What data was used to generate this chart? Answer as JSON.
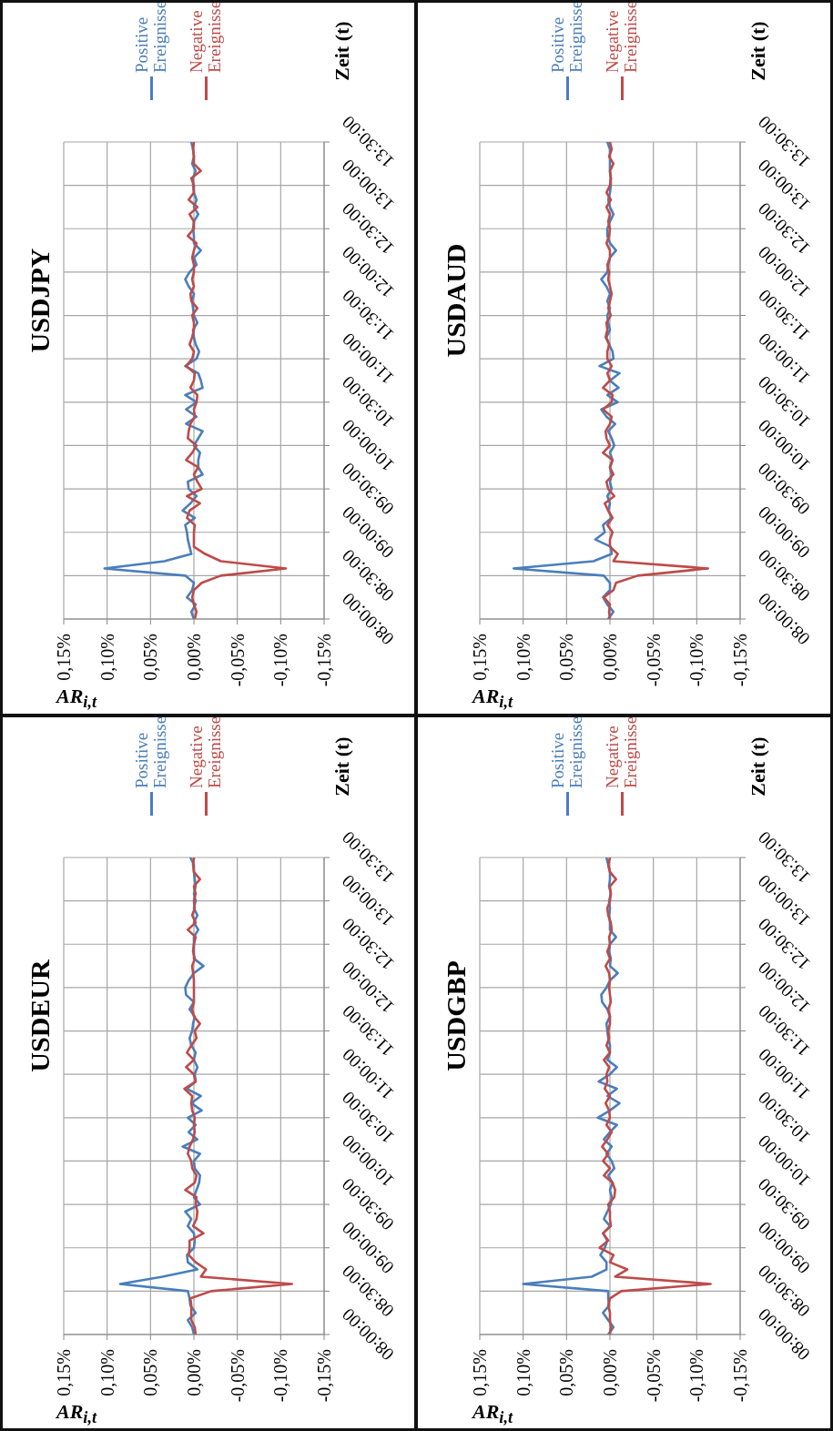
{
  "chart_data": [
    {
      "type": "line",
      "title": "USDEUR",
      "xlabel": "AR$_{i,t}$",
      "ylabel": "Zeit (t)",
      "legend": "top left",
      "grid": true,
      "xlim": [
        0.15,
        -0.15
      ],
      "xticks": [
        {
          "value": 0.15,
          "label": "0,15%"
        },
        {
          "value": 0.1,
          "label": "0,10%"
        },
        {
          "value": 0.05,
          "label": "0,05%"
        },
        {
          "value": 0,
          "label": "0,00%"
        },
        {
          "value": -0.05,
          "label": "-0,05%"
        },
        {
          "value": -0.1,
          "label": "-0,10%"
        },
        {
          "value": -0.15,
          "label": "-0,15%"
        }
      ],
      "ylim": [
        8,
        13.5
      ],
      "yticks": [
        {
          "value": 8,
          "label": "08:00:00"
        },
        {
          "value": 8.5,
          "label": "08:30:00"
        },
        {
          "value": 9,
          "label": "09:00:00"
        },
        {
          "value": 9.5,
          "label": "09:30:00"
        },
        {
          "value": 10,
          "label": "10:00:00"
        },
        {
          "value": 10.5,
          "label": "10:30:00"
        },
        {
          "value": 11,
          "label": "11:00:00"
        },
        {
          "value": 11.5,
          "label": "11:30:00"
        },
        {
          "value": 12,
          "label": "12:00:00"
        },
        {
          "value": 12.5,
          "label": "12:30:00"
        },
        {
          "value": 13,
          "label": "13:00:00"
        },
        {
          "value": 13.5,
          "label": "13:30:00"
        }
      ],
      "series": [
        {
          "name": "Positive Ereignisse",
          "color": "#4a7ebb",
          "x": [
            0.0,
            0.002,
            0.007,
            -0.002,
            0.004,
            0.005,
            0.007,
            0.085,
            0.036,
            -0.004,
            0.007,
            0.008,
            0.0,
            -0.001,
            0.0,
            0.007,
            0.003,
            0.01,
            -0.007,
            0.0,
            -0.003,
            -0.006,
            -0.007,
            -0.001,
            0.0,
            -0.007,
            0.013,
            -0.004,
            0.006,
            -0.002,
            0.007,
            -0.009,
            0.003,
            -0.008,
            0.008,
            -0.002,
            -0.001,
            -0.004,
            0.0,
            -0.002,
            0.003,
            0.005,
            0.002,
            0.001,
            -0.001,
            0.005,
            0.0,
            0.009,
            0.01,
            0.006,
            0.0,
            -0.011,
            0.0,
            0.0,
            0.0,
            0.0,
            -0.005,
            0.0,
            -0.004,
            0.0,
            -0.002,
            0.0,
            -0.002,
            -0.001,
            0.0,
            0.0,
            0.004
          ],
          "values": [
            8,
            8.0833,
            8.1667,
            8.25,
            8.3333,
            8.4167,
            8.5,
            8.5833,
            8.6667,
            8.75,
            8.8333,
            8.9167,
            9,
            9.0833,
            9.1667,
            9.25,
            9.3333,
            9.4167,
            9.5,
            9.5833,
            9.6667,
            9.75,
            9.8333,
            9.9167,
            10,
            10.0833,
            10.1667,
            10.25,
            10.3333,
            10.4167,
            10.5,
            10.5833,
            10.6667,
            10.75,
            10.8333,
            10.9167,
            11,
            11.0833,
            11.1667,
            11.25,
            11.3333,
            11.4167,
            11.5,
            11.5833,
            11.6667,
            11.75,
            11.8333,
            11.9167,
            12,
            12.0833,
            12.1667,
            12.25,
            12.3333,
            12.4167,
            12.5,
            12.5833,
            12.6667,
            12.75,
            12.8333,
            12.9167,
            13,
            13.0833,
            13.1667,
            13.25,
            13.3333,
            13.4167,
            13.5
          ]
        },
        {
          "name": "Negative Ereignisse",
          "color": "#be4b48",
          "x": [
            -0.002,
            -0.001,
            0.003,
            0.003,
            0.003,
            0.004,
            -0.02,
            -0.113,
            -0.008,
            -0.014,
            -0.002,
            0.006,
            0.005,
            0.005,
            -0.011,
            0.001,
            -0.003,
            -0.004,
            -0.002,
            -0.003,
            0.01,
            -0.001,
            -0.003,
            0.002,
            0.003,
            0.007,
            0.005,
            0.001,
            -0.001,
            0.0,
            -0.001,
            0.002,
            0.003,
            0.002,
            0.011,
            -0.002,
            0.0,
            0.009,
            0.0,
            0.008,
            0.003,
            -0.003,
            -0.001,
            -0.007,
            0.0,
            0.002,
            0.0,
            0.0,
            0.0,
            0.0,
            0.001,
            0.002,
            -0.001,
            0.001,
            0.0,
            -0.002,
            0.007,
            -0.002,
            0.002,
            -0.001,
            0.0,
            -0.002,
            0.0,
            -0.007,
            0.0,
            0.001,
            0.0
          ],
          "values": [
            8,
            8.0833,
            8.1667,
            8.25,
            8.3333,
            8.4167,
            8.5,
            8.5833,
            8.6667,
            8.75,
            8.8333,
            8.9167,
            9,
            9.0833,
            9.1667,
            9.25,
            9.3333,
            9.4167,
            9.5,
            9.5833,
            9.6667,
            9.75,
            9.8333,
            9.9167,
            10,
            10.0833,
            10.1667,
            10.25,
            10.3333,
            10.4167,
            10.5,
            10.5833,
            10.6667,
            10.75,
            10.8333,
            10.9167,
            11,
            11.0833,
            11.1667,
            11.25,
            11.3333,
            11.4167,
            11.5,
            11.5833,
            11.6667,
            11.75,
            11.8333,
            11.9167,
            12,
            12.0833,
            12.1667,
            12.25,
            12.3333,
            12.4167,
            12.5,
            12.5833,
            12.6667,
            12.75,
            12.8333,
            12.9167,
            13,
            13.0833,
            13.1667,
            13.25,
            13.3333,
            13.4167,
            13.5
          ]
        }
      ]
    },
    {
      "type": "line",
      "title": "USDJPY",
      "xlabel": "AR$_{i,t}$",
      "ylabel": "Zeit (t)",
      "legend": "top left",
      "grid": true,
      "xlim": [
        0.15,
        -0.15
      ],
      "xticks": [
        {
          "value": 0.15,
          "label": "0,15%"
        },
        {
          "value": 0.1,
          "label": "0,10%"
        },
        {
          "value": 0.05,
          "label": "0,05%"
        },
        {
          "value": 0,
          "label": "0,00%"
        },
        {
          "value": -0.05,
          "label": "-0,05%"
        },
        {
          "value": -0.1,
          "label": "-0,10%"
        },
        {
          "value": -0.15,
          "label": "-0,15%"
        }
      ],
      "ylim": [
        8,
        13.5
      ],
      "yticks": [
        {
          "value": 8,
          "label": "08:00:00"
        },
        {
          "value": 8.5,
          "label": "08:30:00"
        },
        {
          "value": 9,
          "label": "09:00:00"
        },
        {
          "value": 9.5,
          "label": "09:30:00"
        },
        {
          "value": 10,
          "label": "10:00:00"
        },
        {
          "value": 10.5,
          "label": "10:30:00"
        },
        {
          "value": 11,
          "label": "11:00:00"
        },
        {
          "value": 11.5,
          "label": "11:30:00"
        },
        {
          "value": 12,
          "label": "12:00:00"
        },
        {
          "value": 12.5,
          "label": "12:30:00"
        },
        {
          "value": 13,
          "label": "13:00:00"
        },
        {
          "value": 13.5,
          "label": "13:30:00"
        }
      ],
      "series": [
        {
          "name": "Positive Ereignisse",
          "color": "#4a7ebb",
          "x": [
            0.0,
            0.003,
            -0.002,
            0.008,
            0.002,
            0.0,
            0.01,
            0.103,
            0.034,
            0.003,
            0.005,
            0.007,
            0.008,
            0.01,
            -0.001,
            0.013,
            0.004,
            -0.003,
            0.006,
            0.007,
            -0.01,
            -0.005,
            -0.005,
            -0.007,
            0.0,
            -0.005,
            -0.01,
            0.009,
            -0.003,
            0.009,
            -0.003,
            0.01,
            -0.01,
            -0.008,
            -0.005,
            0.01,
            -0.003,
            -0.006,
            -0.002,
            0.0,
            0.001,
            -0.004,
            0.0,
            0.001,
            0.002,
            0.0,
            0.006,
            0.01,
            0.005,
            -0.003,
            0.0,
            -0.008,
            0.0,
            0.0,
            0.001,
            0.0,
            -0.005,
            0.0,
            -0.003,
            0.0,
            0.001,
            0.001,
            -0.002,
            0.002,
            0.0,
            0.001,
            0.003
          ],
          "values": [
            8,
            8.0833,
            8.1667,
            8.25,
            8.3333,
            8.4167,
            8.5,
            8.5833,
            8.6667,
            8.75,
            8.8333,
            8.9167,
            9,
            9.0833,
            9.1667,
            9.25,
            9.3333,
            9.4167,
            9.5,
            9.5833,
            9.6667,
            9.75,
            9.8333,
            9.9167,
            10,
            10.0833,
            10.1667,
            10.25,
            10.3333,
            10.4167,
            10.5,
            10.5833,
            10.6667,
            10.75,
            10.8333,
            10.9167,
            11,
            11.0833,
            11.1667,
            11.25,
            11.3333,
            11.4167,
            11.5,
            11.5833,
            11.6667,
            11.75,
            11.8333,
            11.9167,
            12,
            12.0833,
            12.1667,
            12.25,
            12.3333,
            12.4167,
            12.5,
            12.5833,
            12.6667,
            12.75,
            12.8333,
            12.9167,
            13,
            13.0833,
            13.1667,
            13.25,
            13.3333,
            13.4167,
            13.5
          ]
        },
        {
          "name": "Negative Ereignisse",
          "color": "#be4b48",
          "x": [
            -0.001,
            -0.003,
            0.0,
            0.002,
            0.0,
            -0.009,
            -0.031,
            -0.106,
            -0.031,
            -0.013,
            0.0,
            0.0,
            0.0,
            -0.001,
            0.008,
            0.005,
            -0.007,
            0.008,
            -0.009,
            -0.004,
            0.0,
            -0.005,
            0.009,
            0.002,
            -0.003,
            0.007,
            0.006,
            0.004,
            -0.001,
            0.0,
            -0.003,
            -0.004,
            0.004,
            0.0,
            -0.001,
            0.009,
            0.002,
            0.0,
            0.005,
            0.002,
            0.0,
            0.0,
            0.002,
            -0.004,
            0.003,
            0.004,
            0.0,
            0.002,
            0.0,
            0.0,
            0.002,
            0.0,
            -0.003,
            0.007,
            0.0,
            0.0,
            0.005,
            -0.004,
            0.006,
            0.0,
            0.0,
            0.003,
            -0.008,
            0.0,
            0.0,
            0.001,
            0.0
          ],
          "values": [
            8,
            8.0833,
            8.1667,
            8.25,
            8.3333,
            8.4167,
            8.5,
            8.5833,
            8.6667,
            8.75,
            8.8333,
            8.9167,
            9,
            9.0833,
            9.1667,
            9.25,
            9.3333,
            9.4167,
            9.5,
            9.5833,
            9.6667,
            9.75,
            9.8333,
            9.9167,
            10,
            10.0833,
            10.1667,
            10.25,
            10.3333,
            10.4167,
            10.5,
            10.5833,
            10.6667,
            10.75,
            10.8333,
            10.9167,
            11,
            11.0833,
            11.1667,
            11.25,
            11.3333,
            11.4167,
            11.5,
            11.5833,
            11.6667,
            11.75,
            11.8333,
            11.9167,
            12,
            12.0833,
            12.1667,
            12.25,
            12.3333,
            12.4167,
            12.5,
            12.5833,
            12.6667,
            12.75,
            12.8333,
            12.9167,
            13,
            13.0833,
            13.1667,
            13.25,
            13.3333,
            13.4167,
            13.5
          ]
        }
      ]
    },
    {
      "type": "line",
      "title": "USDGBP",
      "xlabel": "AR$_{i,t}$",
      "ylabel": "Zeit (t)",
      "legend": "top left",
      "grid": true,
      "xlim": [
        0.15,
        -0.15
      ],
      "xticks": [
        {
          "value": 0.15,
          "label": "0,15%"
        },
        {
          "value": 0.1,
          "label": "0,10%"
        },
        {
          "value": 0.05,
          "label": "0,05%"
        },
        {
          "value": 0,
          "label": "0,00%"
        },
        {
          "value": -0.05,
          "label": "-0,05%"
        },
        {
          "value": -0.1,
          "label": "-0,10%"
        },
        {
          "value": -0.15,
          "label": "-0,15%"
        }
      ],
      "ylim": [
        8,
        13.5
      ],
      "yticks": [
        {
          "value": 8,
          "label": "08:00:00"
        },
        {
          "value": 8.5,
          "label": "08:30:00"
        },
        {
          "value": 9,
          "label": "09:00:00"
        },
        {
          "value": 9.5,
          "label": "09:30:00"
        },
        {
          "value": 10,
          "label": "10:00:00"
        },
        {
          "value": 10.5,
          "label": "10:30:00"
        },
        {
          "value": 11,
          "label": "11:00:00"
        },
        {
          "value": 11.5,
          "label": "11:30:00"
        },
        {
          "value": 12,
          "label": "12:00:00"
        },
        {
          "value": 12.5,
          "label": "12:30:00"
        },
        {
          "value": 13,
          "label": "13:00:00"
        },
        {
          "value": 13.5,
          "label": "13:30:00"
        }
      ],
      "series": [
        {
          "name": "Positive Ereignisse",
          "color": "#4a7ebb",
          "x": [
            0.002,
            -0.004,
            0.002,
            0.008,
            0.001,
            0.002,
            0.002,
            0.1,
            0.021,
            0.004,
            0.004,
            0.011,
            0.006,
            0.003,
            0.008,
            0.0,
            0.007,
            0.003,
            -0.001,
            -0.002,
            0.0,
            -0.003,
            0.002,
            -0.005,
            -0.002,
            0.004,
            -0.002,
            0.007,
            0.0,
            -0.008,
            0.014,
            0.0,
            -0.011,
            0.003,
            -0.008,
            0.013,
            0.0,
            -0.008,
            0.003,
            0.0,
            0.0,
            0.002,
            0.003,
            0.004,
            0.0,
            0.003,
            0.009,
            0.01,
            0.004,
            0.0,
            -0.009,
            0.0,
            -0.001,
            0.001,
            0.0,
            -0.007,
            0.0,
            0.0,
            0.001,
            0.0,
            0.001,
            -0.001,
            0.001,
            0.0,
            0.0,
            0.002,
            0.004
          ],
          "values": [
            8,
            8.0833,
            8.1667,
            8.25,
            8.3333,
            8.4167,
            8.5,
            8.5833,
            8.6667,
            8.75,
            8.8333,
            8.9167,
            9,
            9.0833,
            9.1667,
            9.25,
            9.3333,
            9.4167,
            9.5,
            9.5833,
            9.6667,
            9.75,
            9.8333,
            9.9167,
            10,
            10.0833,
            10.1667,
            10.25,
            10.3333,
            10.4167,
            10.5,
            10.5833,
            10.6667,
            10.75,
            10.8333,
            10.9167,
            11,
            11.0833,
            11.1667,
            11.25,
            11.3333,
            11.4167,
            11.5,
            11.5833,
            11.6667,
            11.75,
            11.8333,
            11.9167,
            12,
            12.0833,
            12.1667,
            12.25,
            12.3333,
            12.4167,
            12.5,
            12.5833,
            12.6667,
            12.75,
            12.8333,
            12.9167,
            13,
            13.0833,
            13.1667,
            13.25,
            13.3333,
            13.4167,
            13.5
          ]
        },
        {
          "name": "Negative Ereignisse",
          "color": "#be4b48",
          "x": [
            0.0,
            -0.001,
            0.0,
            0.0,
            0.002,
            0.0,
            -0.013,
            -0.116,
            -0.006,
            -0.02,
            0.0,
            -0.004,
            0.012,
            0.002,
            0.008,
            -0.001,
            0.0,
            0.0,
            0.002,
            -0.005,
            -0.006,
            -0.003,
            0.007,
            0.0,
            0.008,
            0.002,
            0.009,
            0.003,
            -0.002,
            0.004,
            0.0,
            0.001,
            0.005,
            0.0,
            0.006,
            0.003,
            0.004,
            0.001,
            0.007,
            0.0,
            0.004,
            0.001,
            0.002,
            0.0,
            0.0,
            0.002,
            -0.001,
            0.0,
            0.001,
            0.0,
            0.001,
            0.005,
            0.0,
            0.003,
            0.0,
            0.001,
            -0.002,
            -0.001,
            0.002,
            0.003,
            0.0,
            -0.001,
            0.0,
            -0.007,
            0.0,
            0.002,
            0.0
          ],
          "values": [
            8,
            8.0833,
            8.1667,
            8.25,
            8.3333,
            8.4167,
            8.5,
            8.5833,
            8.6667,
            8.75,
            8.8333,
            8.9167,
            9,
            9.0833,
            9.1667,
            9.25,
            9.3333,
            9.4167,
            9.5,
            9.5833,
            9.6667,
            9.75,
            9.8333,
            9.9167,
            10,
            10.0833,
            10.1667,
            10.25,
            10.3333,
            10.4167,
            10.5,
            10.5833,
            10.6667,
            10.75,
            10.8333,
            10.9167,
            11,
            11.0833,
            11.1667,
            11.25,
            11.3333,
            11.4167,
            11.5,
            11.5833,
            11.6667,
            11.75,
            11.8333,
            11.9167,
            12,
            12.0833,
            12.1667,
            12.25,
            12.3333,
            12.4167,
            12.5,
            12.5833,
            12.6667,
            12.75,
            12.8333,
            12.9167,
            13,
            13.0833,
            13.1667,
            13.25,
            13.3333,
            13.4167,
            13.5
          ]
        }
      ]
    },
    {
      "type": "line",
      "title": "USDAUD",
      "xlabel": "AR$_{i,t}$",
      "ylabel": "Zeit (t)",
      "legend": "top left",
      "grid": true,
      "xlim": [
        0.15,
        -0.15
      ],
      "xticks": [
        {
          "value": 0.15,
          "label": "0,15%"
        },
        {
          "value": 0.1,
          "label": "0,10%"
        },
        {
          "value": 0.05,
          "label": "0,05%"
        },
        {
          "value": 0,
          "label": "0,00%"
        },
        {
          "value": -0.05,
          "label": "-0,05%"
        },
        {
          "value": -0.1,
          "label": "-0,10%"
        },
        {
          "value": -0.15,
          "label": "-0,15%"
        }
      ],
      "ylim": [
        8,
        13.5
      ],
      "yticks": [
        {
          "value": 8,
          "label": "08:00:00"
        },
        {
          "value": 8.5,
          "label": "08:30:00"
        },
        {
          "value": 9,
          "label": "09:00:00"
        },
        {
          "value": 9.5,
          "label": "09:30:00"
        },
        {
          "value": 10,
          "label": "10:00:00"
        },
        {
          "value": 10.5,
          "label": "10:30:00"
        },
        {
          "value": 11,
          "label": "11:00:00"
        },
        {
          "value": 11.5,
          "label": "11:30:00"
        },
        {
          "value": 12,
          "label": "12:00:00"
        },
        {
          "value": 12.5,
          "label": "12:30:00"
        },
        {
          "value": 13,
          "label": "13:00:00"
        },
        {
          "value": 13.5,
          "label": "13:30:00"
        }
      ],
      "series": [
        {
          "name": "Positive Ereignisse",
          "color": "#4a7ebb",
          "x": [
            0.002,
            -0.004,
            0.003,
            0.008,
            0.0,
            0.0,
            0.007,
            0.111,
            0.019,
            -0.002,
            -0.001,
            0.017,
            0.006,
            0.008,
            -0.002,
            0.002,
            0.0,
            0.003,
            -0.002,
            0.0,
            -0.002,
            0.0,
            -0.003,
            0.0,
            -0.005,
            -0.002,
            0.002,
            -0.006,
            0.004,
            0.01,
            -0.009,
            0.003,
            -0.01,
            0.0,
            -0.011,
            0.012,
            -0.004,
            -0.003,
            0.001,
            0.004,
            0.0,
            0.002,
            0.003,
            0.0,
            0.003,
            0.0,
            0.004,
            0.01,
            0.003,
            0.002,
            0.0,
            -0.007,
            0.0,
            0.003,
            0.003,
            0.0,
            -0.004,
            0.0,
            0.002,
            0.0,
            -0.001,
            -0.001,
            0.0,
            0.0,
            0.0,
            0.0,
            0.003
          ],
          "values": [
            8,
            8.0833,
            8.1667,
            8.25,
            8.3333,
            8.4167,
            8.5,
            8.5833,
            8.6667,
            8.75,
            8.8333,
            8.9167,
            9,
            9.0833,
            9.1667,
            9.25,
            9.3333,
            9.4167,
            9.5,
            9.5833,
            9.6667,
            9.75,
            9.8333,
            9.9167,
            10,
            10.0833,
            10.1667,
            10.25,
            10.3333,
            10.4167,
            10.5,
            10.5833,
            10.6667,
            10.75,
            10.8333,
            10.9167,
            11,
            11.0833,
            11.1667,
            11.25,
            11.3333,
            11.4167,
            11.5,
            11.5833,
            11.6667,
            11.75,
            11.8333,
            11.9167,
            12,
            12.0833,
            12.1667,
            12.25,
            12.3333,
            12.4167,
            12.5,
            12.5833,
            12.6667,
            12.75,
            12.8333,
            12.9167,
            13,
            13.0833,
            13.1667,
            13.25,
            13.3333,
            13.4167,
            13.5
          ]
        },
        {
          "name": "Negative Ereignisse",
          "color": "#be4b48",
          "x": [
            0.0,
            0.001,
            0.0,
            0.007,
            -0.004,
            -0.007,
            -0.032,
            -0.113,
            -0.004,
            -0.009,
            0.0,
            0.0,
            -0.003,
            0.003,
            -0.003,
            0.002,
            0.006,
            -0.005,
            0.002,
            0.004,
            -0.004,
            0.0,
            -0.003,
            0.008,
            0.0,
            0.004,
            0.005,
            0.0,
            -0.002,
            0.008,
            -0.002,
            -0.003,
            0.008,
            0.0,
            0.003,
            -0.002,
            0.003,
            0.003,
            0.001,
            0.005,
            0.003,
            0.004,
            -0.001,
            0.002,
            0.0,
            -0.002,
            0.0,
            0.002,
            0.001,
            0.003,
            0.0,
            0.0,
            0.004,
            0.001,
            0.0,
            0.002,
            0.0,
            0.004,
            -0.001,
            0.004,
            0.0,
            -0.001,
            0.0,
            -0.004,
            0.001,
            -0.002,
            0.0
          ],
          "values": [
            8,
            8.0833,
            8.1667,
            8.25,
            8.3333,
            8.4167,
            8.5,
            8.5833,
            8.6667,
            8.75,
            8.8333,
            8.9167,
            9,
            9.0833,
            9.1667,
            9.25,
            9.3333,
            9.4167,
            9.5,
            9.5833,
            9.6667,
            9.75,
            9.8333,
            9.9167,
            10,
            10.0833,
            10.1667,
            10.25,
            10.3333,
            10.4167,
            10.5,
            10.5833,
            10.6667,
            10.75,
            10.8333,
            10.9167,
            11,
            11.0833,
            11.1667,
            11.25,
            11.3333,
            11.4167,
            11.5,
            11.5833,
            11.6667,
            11.75,
            11.8333,
            11.9167,
            12,
            12.0833,
            12.1667,
            12.25,
            12.3333,
            12.4167,
            12.5,
            12.5833,
            12.6667,
            12.75,
            12.8333,
            12.9167,
            13,
            13.0833,
            13.1667,
            13.25,
            13.3333,
            13.4167,
            13.5
          ]
        }
      ]
    }
  ]
}
